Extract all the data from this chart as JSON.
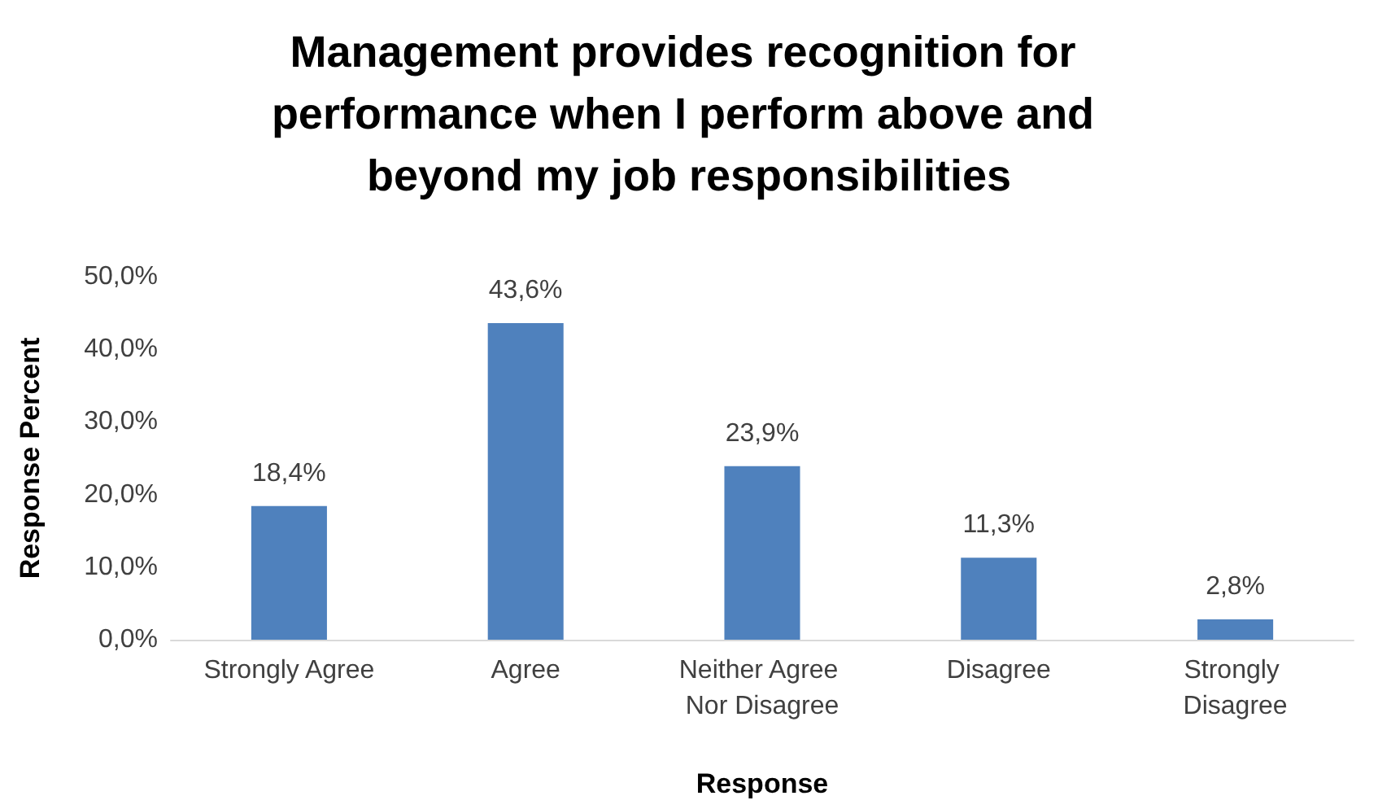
{
  "chart_data": {
    "type": "bar",
    "title": "Management provides recognition for performance when I perform above and beyond my job responsibilities",
    "xlabel": "Response",
    "ylabel": "Response Percent",
    "categories": [
      "Strongly Agree",
      "Agree",
      "Neither Agree Nor Disagree",
      "Disagree",
      "Strongly Disagree"
    ],
    "values": [
      18.4,
      43.6,
      23.9,
      11.3,
      2.8
    ],
    "value_labels": [
      "18,4%",
      "43,6%",
      "23,9%",
      "11,3%",
      "2,8%"
    ],
    "color": "#4f81bd",
    "ylim": [
      0,
      50
    ],
    "yticks": [
      {
        "value": 0,
        "label": "0,0%"
      },
      {
        "value": 10,
        "label": "10,0%"
      },
      {
        "value": 20,
        "label": "20,0%"
      },
      {
        "value": 30,
        "label": "30,0%"
      },
      {
        "value": 40,
        "label": "40,0%"
      },
      {
        "value": 50,
        "label": "50,0%"
      }
    ],
    "grid": false
  }
}
